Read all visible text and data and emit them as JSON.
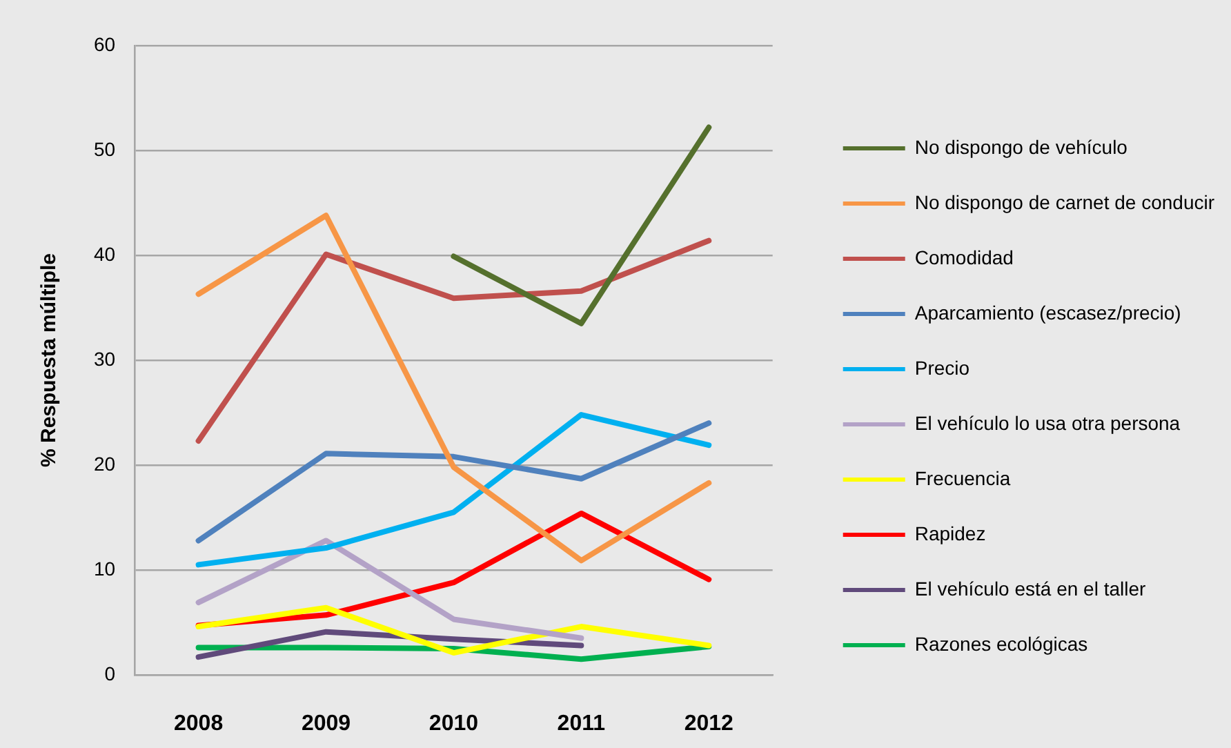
{
  "chart_data": {
    "type": "line",
    "ylabel": "% Respuesta múltiple",
    "categories": [
      "2008",
      "2009",
      "2010",
      "2011",
      "2012"
    ],
    "ylim": [
      0,
      60
    ],
    "yticks": [
      0,
      10,
      20,
      30,
      40,
      50,
      60
    ],
    "grid": "y",
    "legend": "right",
    "marker": "none",
    "line_style": "solid",
    "series": [
      {
        "name": "No dispongo de vehículo",
        "color": "#55702d",
        "values": [
          null,
          null,
          39.9,
          33.5,
          52.2
        ]
      },
      {
        "name": "No dispongo de carnet de conducir",
        "color": "#f79646",
        "values": [
          36.3,
          43.8,
          19.8,
          10.9,
          18.3
        ]
      },
      {
        "name": "Comodidad",
        "color": "#c0504d",
        "values": [
          22.3,
          40.1,
          35.9,
          36.6,
          41.4
        ]
      },
      {
        "name": "Aparcamiento (escasez/precio)",
        "color": "#4f81bd",
        "values": [
          12.8,
          21.1,
          20.8,
          18.7,
          24.0
        ]
      },
      {
        "name": "Precio",
        "color": "#00b0f0",
        "values": [
          10.5,
          12.1,
          15.5,
          24.8,
          21.9
        ]
      },
      {
        "name": "El vehículo lo usa otra persona",
        "color": "#b3a2c7",
        "values": [
          6.9,
          12.8,
          5.3,
          3.5,
          null
        ]
      },
      {
        "name": "Frecuencia",
        "color": "#ffff00",
        "values": [
          4.6,
          6.4,
          2.1,
          4.6,
          2.8
        ]
      },
      {
        "name": "Rapidez",
        "color": "#ff0000",
        "values": [
          4.7,
          5.7,
          8.8,
          15.4,
          9.1
        ]
      },
      {
        "name": "El vehículo está en el taller",
        "color": "#604a7b",
        "values": [
          1.7,
          4.1,
          3.4,
          2.8,
          null
        ]
      },
      {
        "name": "Razones ecológicas",
        "color": "#00b050",
        "values": [
          2.6,
          2.6,
          2.5,
          1.5,
          2.7
        ]
      }
    ]
  }
}
